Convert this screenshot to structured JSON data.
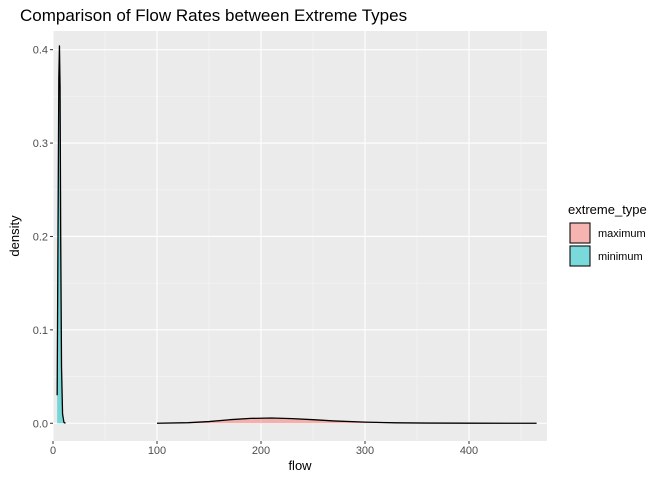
{
  "chart_data": {
    "type": "area",
    "title": "Comparison of Flow Rates between Extreme Types",
    "xlabel": "flow",
    "ylabel": "density",
    "xlim": [
      0,
      475
    ],
    "ylim": [
      -0.019,
      0.42
    ],
    "x_ticks": [
      0,
      100,
      200,
      300,
      400
    ],
    "y_ticks": [
      0.0,
      0.1,
      0.2,
      0.3,
      0.4
    ],
    "x_tick_labels": [
      "0",
      "100",
      "200",
      "300",
      "400"
    ],
    "y_tick_labels": [
      "0.0",
      "0.1",
      "0.2",
      "0.3",
      "0.4"
    ],
    "grid": true,
    "legend": {
      "title": "extreme_type",
      "position": "right"
    },
    "series": [
      {
        "name": "maximum",
        "color": "#F8766D",
        "x": [
          100,
          130,
          150,
          170,
          190,
          210,
          230,
          250,
          270,
          300,
          330,
          360,
          400,
          440,
          465
        ],
        "y": [
          0.0,
          0.0006,
          0.0018,
          0.0038,
          0.0052,
          0.0056,
          0.005,
          0.0038,
          0.0025,
          0.0012,
          0.0005,
          0.0002,
          5e-05,
          0.0,
          0.0
        ]
      },
      {
        "name": "minimum",
        "color": "#00BFC4",
        "x": [
          4,
          4.8,
          5.6,
          6.2,
          6.8,
          7.4,
          8.2,
          9.2,
          10.5,
          12
        ],
        "y": [
          0.03,
          0.2,
          0.37,
          0.404,
          0.36,
          0.2,
          0.06,
          0.01,
          0.001,
          0.0
        ]
      }
    ]
  }
}
